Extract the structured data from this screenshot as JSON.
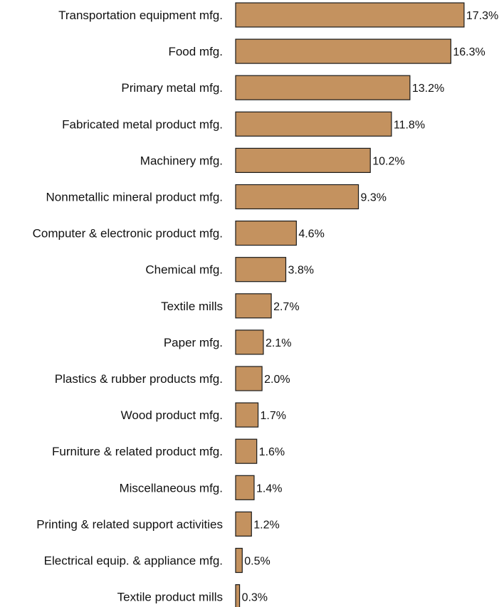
{
  "chart_data": {
    "type": "bar",
    "orientation": "horizontal",
    "categories": [
      "Transportation equipment mfg.",
      "Food mfg.",
      "Primary metal mfg.",
      "Fabricated metal product mfg.",
      "Machinery mfg.",
      "Nonmetallic mineral product mfg.",
      "Computer & electronic product mfg.",
      "Chemical mfg.",
      "Textile mills",
      "Paper mfg.",
      "Plastics & rubber products mfg.",
      "Wood product mfg.",
      "Furniture & related product mfg.",
      "Miscellaneous mfg.",
      "Printing & related support activities",
      "Electrical equip. & appliance mfg.",
      "Textile product mills"
    ],
    "values": [
      17.3,
      16.3,
      13.2,
      11.8,
      10.2,
      9.3,
      4.6,
      3.8,
      2.7,
      2.1,
      2.0,
      1.7,
      1.6,
      1.4,
      1.2,
      0.5,
      0.3
    ],
    "value_labels": [
      "17.3%",
      "16.3%",
      "13.2%",
      "11.8%",
      "10.2%",
      "9.3%",
      "4.6%",
      "3.8%",
      "2.7%",
      "2.1%",
      "2.0%",
      "1.7%",
      "1.6%",
      "1.4%",
      "1.2%",
      "0.5%",
      "0.3%"
    ],
    "title": "",
    "xlabel": "",
    "ylabel": "",
    "bar_color": "#c4925f",
    "bar_outline": "#1a1a1a",
    "grid": false,
    "legend": "none"
  }
}
